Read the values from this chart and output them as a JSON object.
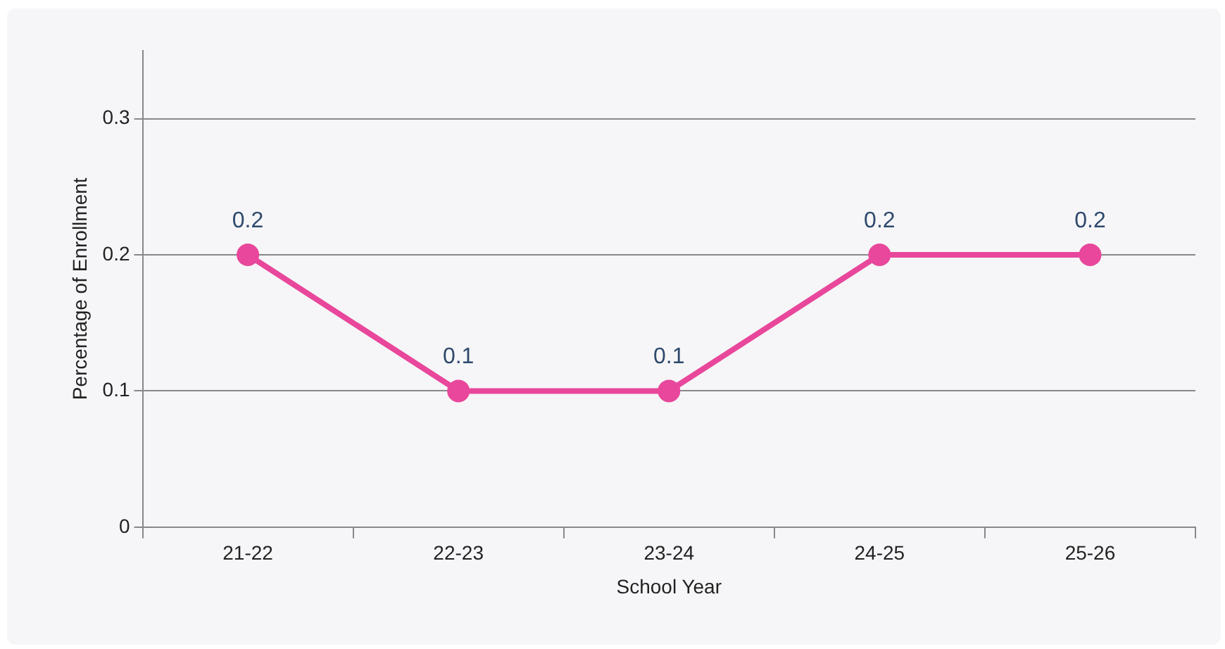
{
  "chart_data": {
    "type": "line",
    "xlabel": "School Year",
    "ylabel": "Percentage of Enrollment",
    "categories": [
      "21-22",
      "22-23",
      "23-24",
      "24-25",
      "25-26"
    ],
    "series": [
      {
        "color": "#e8479b",
        "values": [
          0.2,
          0.1,
          0.1,
          0.2,
          0.2
        ]
      }
    ],
    "ylim": [
      0,
      0.35
    ],
    "yticks": [
      0,
      0.1,
      0.2,
      0.3
    ],
    "grid": "y",
    "legend": false,
    "marker": "circle",
    "line_style": "solid",
    "data_labels": true
  }
}
